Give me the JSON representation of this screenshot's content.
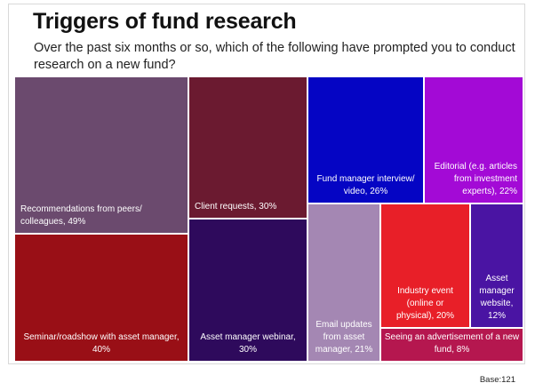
{
  "title": "Triggers of fund research",
  "subtitle": "Over the past six months or so, which of the following have prompted you to conduct research on a new fund?",
  "base_label": "Base:121",
  "chart_data": {
    "type": "treemap",
    "unit": "%",
    "items": [
      {
        "label": "Recommendations from peers/ colleagues, 49%",
        "lines": [
          "Recommendations from peers/",
          "colleagues, 49%"
        ],
        "value": 49,
        "color": "#6b4a6e",
        "align": "start"
      },
      {
        "label": "Seminar/roadshow with asset manager, 40%",
        "lines": [
          "Seminar/roadshow with asset manager,",
          "40%"
        ],
        "value": 40,
        "color": "#990f16",
        "align": "middle"
      },
      {
        "label": "Client requests, 30%",
        "lines": [
          "Client requests, 30%"
        ],
        "value": 30,
        "color": "#6b1a30",
        "align": "start"
      },
      {
        "label": "Asset manager webinar, 30%",
        "lines": [
          "Asset manager webinar,",
          "30%"
        ],
        "value": 30,
        "color": "#2e0a5c",
        "align": "middle"
      },
      {
        "label": "Fund manager interview/ video, 26%",
        "lines": [
          "Fund manager interview/",
          "video, 26%"
        ],
        "value": 26,
        "color": "#0505c4",
        "align": "middle"
      },
      {
        "label": "Editorial (e.g. articles from investment experts), 22%",
        "lines": [
          "Editorial (e.g. articles",
          "from investment",
          "experts), 22%"
        ],
        "value": 22,
        "color": "#a30ad6",
        "align": "end"
      },
      {
        "label": "Email updates from asset manager, 21%",
        "lines": [
          "Email updates",
          "from asset",
          "manager, 21%"
        ],
        "value": 21,
        "color": "#a487b3",
        "align": "middle"
      },
      {
        "label": "Industry event (online or physical), 20%",
        "lines": [
          "Industry event",
          "(online or",
          "physical), 20%"
        ],
        "value": 20,
        "color": "#e81f28",
        "align": "middle"
      },
      {
        "label": "Asset manager website, 12%",
        "lines": [
          "Asset",
          "manager",
          "website,",
          "12%"
        ],
        "value": 12,
        "color": "#4a14a3",
        "align": "middle"
      },
      {
        "label": "Seeing an advertisement of a new fund, 8%",
        "lines": [
          "Seeing an advertisement of a new",
          "fund, 8%"
        ],
        "value": 8,
        "color": "#b5174f",
        "align": "middle"
      }
    ]
  }
}
